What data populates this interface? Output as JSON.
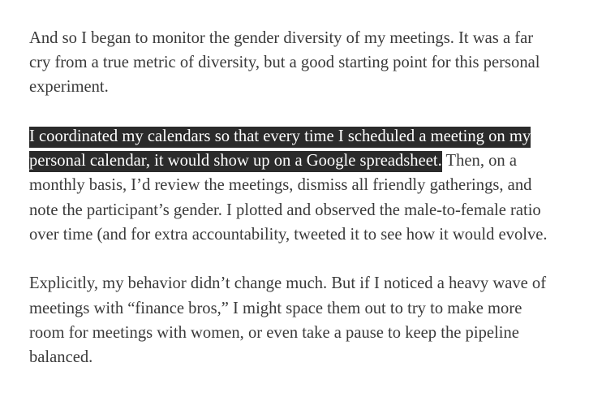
{
  "article": {
    "paragraphs": [
      {
        "text": "And so I began to monitor the gender diversity of my meetings. It was a far cry from a true metric of diversity, but a good starting point for this personal experiment."
      },
      {
        "highlighted": "I coordinated my calendars so that every time I scheduled a meeting on my personal calendar, it would show up on a Google spreadsheet.",
        "text": " Then, on a monthly basis, I’d review the meetings, dismiss all friendly gatherings, and note the participant’s gender. I plotted and observed the male-to-female ratio over time (and for extra accountability, tweeted it to see how it would evolve."
      },
      {
        "text": "Explicitly, my behavior didn’t change much. But if I noticed a heavy wave of meetings with “finance bros,” I might space them out to try to make more room for meetings with women, or even take a pause to keep the pipeline balanced."
      }
    ]
  }
}
